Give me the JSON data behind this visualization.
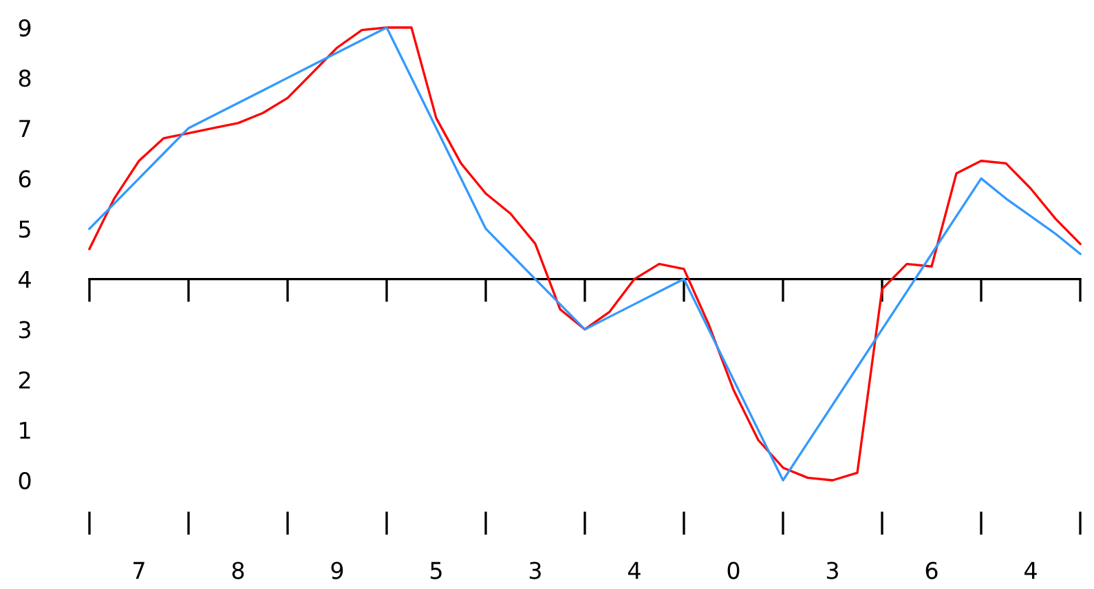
{
  "chart_data": {
    "type": "line",
    "categories": [
      null,
      null,
      "7",
      null,
      null,
      null,
      "8",
      null,
      null,
      null,
      "9",
      null,
      null,
      null,
      "5",
      null,
      null,
      null,
      "3",
      null,
      null,
      null,
      "4",
      null,
      null,
      null,
      "0",
      null,
      null,
      null,
      "3",
      null,
      null,
      null,
      "6",
      null,
      null,
      null,
      "4",
      null,
      null
    ],
    "ylim": [
      0,
      9
    ],
    "ref_lines": [
      {
        "axis": "y",
        "value": 4,
        "color": "#000000"
      }
    ],
    "yticks": [
      0,
      1,
      2,
      3,
      4,
      5,
      6,
      7,
      8,
      9
    ],
    "grid": false,
    "legend": false,
    "marker": "none",
    "line_style": "solid",
    "series": [
      {
        "color": "#ff0000",
        "values": [
          4.6,
          5.6,
          6.35,
          6.8,
          6.9,
          7.0,
          7.1,
          7.3,
          7.6,
          8.1,
          8.6,
          8.95,
          9.0,
          9.0,
          7.2,
          6.3,
          5.7,
          5.3,
          4.7,
          3.4,
          3.0,
          3.35,
          4.0,
          4.3,
          4.2,
          3.1,
          1.8,
          0.8,
          0.25,
          0.05,
          0.0,
          0.15,
          3.8,
          4.3,
          4.25,
          6.1,
          6.35,
          6.3,
          5.8,
          5.2,
          4.7
        ]
      },
      {
        "color": "#3399ff",
        "values": [
          5,
          5.5,
          6,
          6.5,
          7,
          7.25,
          7.5,
          7.75,
          8,
          8.25,
          8.5,
          8.75,
          9,
          8,
          7,
          6,
          5,
          4.5,
          4,
          3.5,
          3,
          3.25,
          3.5,
          3.75,
          4,
          3,
          2,
          1,
          0,
          0.75,
          1.5,
          2.25,
          3,
          3.75,
          4.5,
          5.25,
          6,
          5.6,
          5.25,
          4.9,
          4.5
        ]
      }
    ]
  }
}
